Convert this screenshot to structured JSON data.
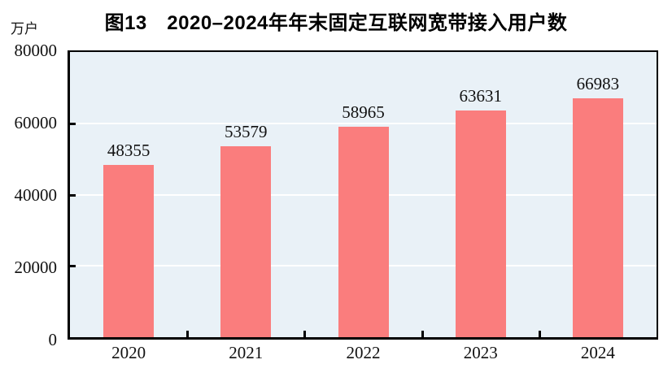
{
  "chart_data": {
    "type": "bar",
    "title": "图13　2020–2024年年末固定互联网宽带接入用户数",
    "unit_label": "万户",
    "categories": [
      "2020",
      "2021",
      "2022",
      "2023",
      "2024"
    ],
    "values": [
      48355,
      53579,
      58965,
      63631,
      66983
    ],
    "xlabel": "",
    "ylabel": "万户",
    "ylim": [
      0,
      80000
    ],
    "yticks": [
      0,
      20000,
      40000,
      60000,
      80000
    ],
    "grid": "horizontal",
    "legend_position": "none",
    "colors": {
      "bar": "#fa7d7d",
      "plot_background": "#e9f1f7",
      "gridline": "#ffffff",
      "axis": "#000000",
      "text": "#111111"
    }
  }
}
